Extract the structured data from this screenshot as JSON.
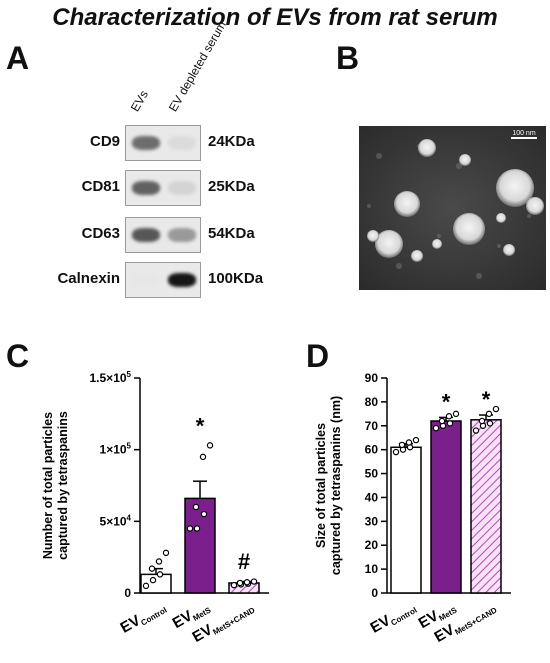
{
  "figure": {
    "title": "Characterization of  EVs from rat serum",
    "panels": {
      "a": "A",
      "b": "B",
      "c": "C",
      "d": "D"
    }
  },
  "blot": {
    "lanes": [
      "EVs",
      "EV depleted serum"
    ],
    "rows": [
      {
        "marker": "CD9",
        "kda": "24KDa",
        "ev_intensity": 0.55,
        "dep_intensity": 0.05
      },
      {
        "marker": "CD81",
        "kda": "25KDa",
        "ev_intensity": 0.6,
        "dep_intensity": 0.08
      },
      {
        "marker": "CD63",
        "kda": "54KDa",
        "ev_intensity": 0.65,
        "dep_intensity": 0.35
      },
      {
        "marker": "Calnexin",
        "kda": "100KDa",
        "ev_intensity": 0.0,
        "dep_intensity": 0.95
      }
    ]
  },
  "tem": {
    "scale_bar": "100 nm"
  },
  "chart_data": [
    {
      "type": "bar",
      "panel": "C",
      "ylabel_line1": "Number of total particles",
      "ylabel_line2": "captured by tetraspanins",
      "ylim": [
        0,
        150000
      ],
      "yticks": [
        {
          "value": 0,
          "label": "0"
        },
        {
          "value": 50000,
          "label": "5×10",
          "exp": "4"
        },
        {
          "value": 100000,
          "label": "1×10",
          "exp": "5"
        },
        {
          "value": 150000,
          "label": "1.5×10",
          "exp": "5"
        }
      ],
      "categories": [
        {
          "main": "EV",
          "sub": "Control"
        },
        {
          "main": "EV",
          "sub": "MetS"
        },
        {
          "main": "EV",
          "sub": "MetS+CAND"
        }
      ],
      "values": [
        13000,
        66000,
        7000
      ],
      "errors": [
        4000,
        12000,
        1000
      ],
      "points": [
        [
          5000,
          9000,
          13000,
          17000,
          22000,
          28000
        ],
        [
          45000,
          45000,
          55000,
          60000,
          95000,
          103000
        ],
        [
          5500,
          6000,
          6500,
          7000,
          7500,
          8000
        ]
      ],
      "annotations": [
        "",
        "*",
        "#"
      ],
      "fills": [
        "#ffffff",
        "#7b1f8c",
        "hatch"
      ]
    },
    {
      "type": "bar",
      "panel": "D",
      "ylabel_line1": "Size of total particles",
      "ylabel_line2": "captured by tetraspanins (nm)",
      "ylim": [
        0,
        90
      ],
      "yticks": [
        {
          "value": 0,
          "label": "0"
        },
        {
          "value": 10,
          "label": "10"
        },
        {
          "value": 20,
          "label": "20"
        },
        {
          "value": 30,
          "label": "30"
        },
        {
          "value": 40,
          "label": "40"
        },
        {
          "value": 50,
          "label": "50"
        },
        {
          "value": 60,
          "label": "60"
        },
        {
          "value": 70,
          "label": "70"
        },
        {
          "value": 80,
          "label": "80"
        },
        {
          "value": 90,
          "label": "90"
        }
      ],
      "categories": [
        {
          "main": "EV",
          "sub": "Control"
        },
        {
          "main": "EV",
          "sub": "MetS"
        },
        {
          "main": "EV",
          "sub": "MetS+CAND"
        }
      ],
      "values": [
        61,
        72,
        72.5
      ],
      "errors": [
        1.5,
        1.5,
        2
      ],
      "points": [
        [
          59,
          60,
          61,
          62,
          63,
          64
        ],
        [
          69,
          70,
          71,
          72,
          74,
          75
        ],
        [
          68,
          70,
          71,
          72,
          75,
          77
        ]
      ],
      "annotations": [
        "",
        "*",
        "*"
      ],
      "fills": [
        "#ffffff",
        "#7b1f8c",
        "hatch"
      ]
    }
  ]
}
